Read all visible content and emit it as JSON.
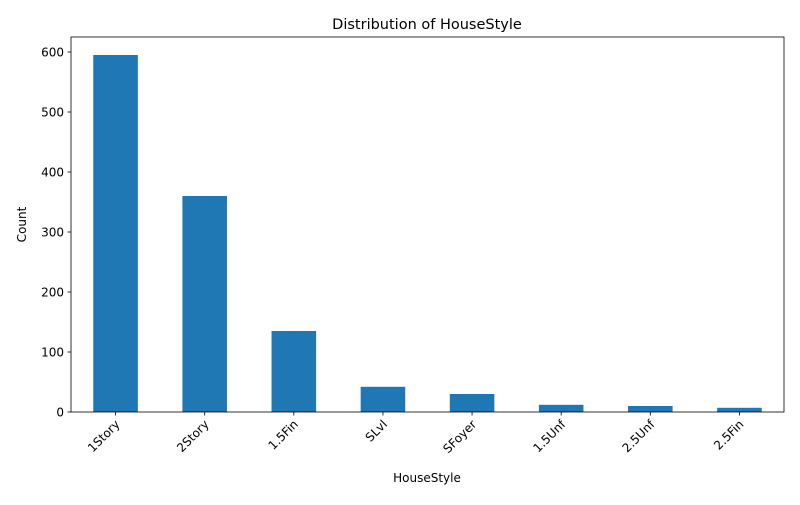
{
  "chart_data": {
    "type": "bar",
    "title": "Distribution of HouseStyle",
    "xlabel": "HouseStyle",
    "ylabel": "Count",
    "categories": [
      "1Story",
      "2Story",
      "1.5Fin",
      "SLvl",
      "SFoyer",
      "1.5Unf",
      "2.5Unf",
      "2.5Fin"
    ],
    "values": [
      595,
      360,
      135,
      42,
      30,
      12,
      10,
      7
    ],
    "ylim": [
      0,
      625
    ],
    "yticks": [
      0,
      100,
      200,
      300,
      400,
      500,
      600
    ],
    "grid": false,
    "legend": false,
    "bar_color": "#1f77b4"
  }
}
